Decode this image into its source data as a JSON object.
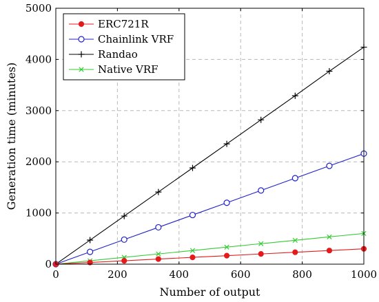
{
  "chart_data": {
    "type": "line",
    "title": "",
    "xlabel": "Number of output",
    "ylabel": "Generation time (minutes)",
    "xlim": [
      0,
      1000
    ],
    "ylim": [
      0,
      5000
    ],
    "x_ticks": [
      0,
      200,
      400,
      600,
      800,
      1000
    ],
    "y_ticks": [
      0,
      1000,
      2000,
      3000,
      4000,
      5000
    ],
    "x_tick_labels": [
      "0",
      "200",
      "400",
      "600",
      "800",
      "1000"
    ],
    "y_tick_labels": [
      "0",
      "1000",
      "2000",
      "3000",
      "4000",
      "5000"
    ],
    "grid": true,
    "legend_position": "top-left",
    "x": [
      0,
      111,
      222,
      333,
      444,
      555,
      666,
      777,
      888,
      1000
    ],
    "series": [
      {
        "name": "ERC721R",
        "color": "#e41a1c",
        "marker": "filled-circle",
        "values": [
          0,
          33,
          66,
          100,
          133,
          166,
          200,
          233,
          266,
          300
        ]
      },
      {
        "name": "Chainlink VRF",
        "color": "#1f1fcc",
        "marker": "open-circle",
        "values": [
          0,
          240,
          480,
          720,
          960,
          1200,
          1440,
          1680,
          1920,
          2160
        ]
      },
      {
        "name": "Randao",
        "color": "#000000",
        "marker": "plus",
        "values": [
          0,
          470,
          940,
          1410,
          1880,
          2350,
          2820,
          3290,
          3770,
          4240
        ]
      },
      {
        "name": "Native VRF",
        "color": "#33cc33",
        "marker": "cross",
        "values": [
          0,
          66,
          133,
          200,
          266,
          333,
          400,
          466,
          533,
          600
        ]
      }
    ]
  }
}
